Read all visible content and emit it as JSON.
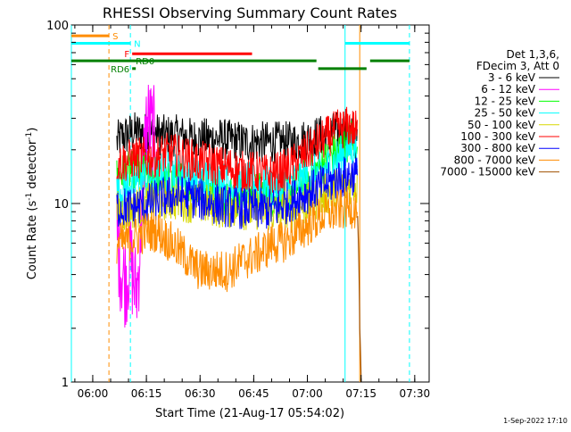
{
  "chart_data": {
    "type": "line",
    "title": "RHESSI Observing Summary Count Rates",
    "xlabel": "Start Time (21-Aug-17 05:54:02)",
    "ylabel_main": "Count Rate (s",
    "ylabel_sup1": "-1",
    "ylabel_mid": " detector",
    "ylabel_sup2": "-1",
    "ylabel_end": ")",
    "x_unit": "minutes since 05:54:02",
    "x_range": [
      0,
      100
    ],
    "y_scale": "log",
    "y_range": [
      1,
      100
    ],
    "x_ticks": [
      {
        "v": 5.97,
        "label": "06:00"
      },
      {
        "v": 20.97,
        "label": "06:15"
      },
      {
        "v": 35.97,
        "label": "06:30"
      },
      {
        "v": 50.97,
        "label": "06:45"
      },
      {
        "v": 65.97,
        "label": "07:00"
      },
      {
        "v": 80.97,
        "label": "07:15"
      },
      {
        "v": 95.97,
        "label": "07:30"
      }
    ],
    "y_ticks": [
      {
        "v": 1,
        "label": "1"
      },
      {
        "v": 10,
        "label": "10"
      },
      {
        "v": 100,
        "label": "100"
      }
    ],
    "legend_title_1": "Det 1,3,6,",
    "legend_title_2": "FDecim 3, Att 0",
    "legend_placement": "right",
    "series": [
      {
        "name": "3 - 6 keV",
        "color": "#000000",
        "x": [
          12.7,
          14,
          16,
          18,
          20,
          22,
          24,
          26,
          28,
          30,
          32,
          34,
          36,
          38,
          40,
          42,
          44,
          46,
          48,
          50,
          52,
          54,
          56,
          58,
          60,
          62,
          64,
          66,
          68,
          70,
          72,
          74,
          76,
          78,
          79,
          80
        ],
        "y": [
          22,
          23.5,
          24.5,
          25,
          25,
          24.5,
          24.5,
          24,
          24,
          24,
          23.5,
          23,
          23,
          23,
          23,
          23,
          22.5,
          22.5,
          22,
          22,
          22,
          22,
          22,
          22,
          22,
          22,
          22.5,
          23,
          23.5,
          24,
          24.5,
          25,
          25,
          24,
          23,
          22
        ]
      },
      {
        "name": "6 - 12 keV",
        "color": "#ff00ff",
        "x": [
          12.7,
          13.2,
          13.8,
          14.5,
          15,
          15.5,
          16,
          16.5,
          17,
          17.5,
          18,
          18.5,
          19,
          19.5,
          20,
          20.5,
          21,
          21.6,
          22,
          22.6,
          23.2,
          24
        ],
        "y": [
          7,
          5.5,
          4.5,
          4,
          3.8,
          4,
          4.5,
          5,
          4.2,
          3.5,
          3.3,
          3.5,
          5,
          8,
          14,
          20,
          28,
          28,
          27,
          25,
          24,
          24.5
        ]
      },
      {
        "name": "12 - 25 keV",
        "color": "#00ff00",
        "x": [
          12.7,
          14,
          16,
          18,
          20,
          22,
          24,
          26,
          28,
          30,
          32,
          34,
          36,
          38,
          40,
          42,
          44,
          46,
          48,
          50,
          52,
          54,
          56,
          58,
          60,
          62,
          64,
          66,
          68,
          70,
          72,
          74,
          76,
          78,
          79,
          80
        ],
        "y": [
          14,
          14.5,
          15,
          15,
          15,
          14.5,
          14,
          13,
          13,
          13.5,
          13,
          12.5,
          12,
          12,
          11.5,
          11,
          11.5,
          11,
          11.5,
          11.5,
          11.5,
          11.5,
          11,
          10.5,
          11.5,
          12,
          13,
          14,
          15,
          16.5,
          18,
          19.5,
          21,
          23,
          24,
          24
        ]
      },
      {
        "name": "25 - 50 keV",
        "color": "#00ffff",
        "x": [
          12.7,
          14,
          16,
          18,
          20,
          22,
          24,
          26,
          28,
          30,
          32,
          34,
          36,
          38,
          40,
          42,
          44,
          46,
          48,
          50,
          52,
          54,
          56,
          58,
          60,
          62,
          64,
          66,
          68,
          70,
          72,
          74,
          76,
          78,
          79,
          80
        ],
        "y": [
          11.5,
          12,
          12.5,
          13,
          13.5,
          14,
          14.5,
          15,
          15,
          15,
          14.5,
          14,
          13.5,
          13.5,
          13,
          13,
          13,
          13,
          13,
          13,
          13,
          12.5,
          12.5,
          12,
          12.5,
          13,
          13.5,
          14,
          14.5,
          15,
          16,
          17.5,
          19,
          20.5,
          21,
          21
        ]
      },
      {
        "name": "50 - 100 keV",
        "color": "#d8d800",
        "x": [
          12.7,
          14,
          16,
          18,
          20,
          22,
          24,
          26,
          28,
          30,
          32,
          34,
          36,
          38,
          40,
          42,
          44,
          46,
          48,
          50,
          52,
          54,
          56,
          58,
          60,
          62,
          64,
          66,
          68,
          70,
          72,
          74,
          76,
          78,
          79,
          80
        ],
        "y": [
          9,
          9,
          9.2,
          9.5,
          9.8,
          10,
          10.2,
          10.5,
          10.5,
          10.5,
          10.3,
          10,
          10,
          9.8,
          9.7,
          9.5,
          9.5,
          9.5,
          9.3,
          9.2,
          9.3,
          9.2,
          9,
          9,
          9.2,
          9.3,
          9.5,
          10,
          10.5,
          11,
          11.5,
          12,
          12.5,
          13,
          13,
          12.5
        ]
      },
      {
        "name": "100 - 300 keV",
        "color": "#ff0000",
        "x": [
          12.7,
          14,
          16,
          18,
          20,
          22,
          24,
          26,
          28,
          30,
          32,
          34,
          36,
          38,
          40,
          42,
          44,
          46,
          48,
          50,
          52,
          54,
          56,
          58,
          60,
          62,
          64,
          66,
          68,
          70,
          72,
          74,
          76,
          78,
          79,
          80
        ],
        "y": [
          17,
          17,
          17.5,
          18,
          18,
          18,
          18.5,
          19,
          19,
          18.5,
          18,
          17.5,
          17,
          17,
          16.5,
          16,
          16,
          15.5,
          15,
          15,
          15,
          14.5,
          14.5,
          15,
          15.5,
          16.5,
          18,
          19.5,
          21,
          22.5,
          24,
          25.5,
          26.5,
          27,
          26,
          25
        ]
      },
      {
        "name": "300 - 800 keV",
        "color": "#0000ff",
        "x": [
          12.7,
          14,
          16,
          18,
          20,
          22,
          24,
          26,
          28,
          30,
          32,
          34,
          36,
          38,
          40,
          42,
          44,
          46,
          48,
          50,
          52,
          54,
          56,
          58,
          60,
          62,
          64,
          66,
          68,
          70,
          72,
          74,
          76,
          78,
          79,
          80
        ],
        "y": [
          9.5,
          9.5,
          9.5,
          9.6,
          9.8,
          10,
          10.5,
          10.8,
          11,
          11,
          11,
          10.8,
          10.5,
          10.2,
          10,
          9.8,
          9.6,
          9.5,
          9.4,
          9.3,
          9.3,
          9.3,
          9.3,
          9.5,
          10,
          10.5,
          11,
          11.5,
          12,
          12.5,
          13,
          13.5,
          14,
          14.5,
          14.5,
          14
        ]
      },
      {
        "name": "800 - 7000 keV",
        "color": "#ff8c00",
        "x": [
          12.7,
          14,
          16,
          18,
          20,
          22,
          24,
          26,
          28,
          30,
          32,
          34,
          36,
          38,
          40,
          42,
          44,
          46,
          48,
          50,
          52,
          54,
          56,
          58,
          60,
          62,
          64,
          66,
          68,
          70,
          72,
          74,
          76,
          78,
          79,
          80
        ],
        "y": [
          6,
          6,
          6.2,
          6.5,
          6.8,
          7,
          7,
          6.5,
          6,
          5.5,
          5,
          4.5,
          4.2,
          4.2,
          4.2,
          4.2,
          4.2,
          4.5,
          4.8,
          5,
          5.2,
          5.5,
          6,
          6,
          6.2,
          6.5,
          7,
          7.5,
          8,
          8.5,
          8.8,
          9,
          9.3,
          9.5,
          9.5,
          9.3
        ]
      },
      {
        "name": "7000 - 15000 keV",
        "color": "#a05000",
        "x": [
          80,
          80.6,
          81
        ],
        "y": [
          8.5,
          2,
          1
        ]
      }
    ],
    "decimation_bars": [
      {
        "label": "S",
        "color": "#ff8c00",
        "x0": 0,
        "x1": 10.5,
        "level": 87
      },
      {
        "label": "N",
        "color": "#00ffff",
        "x0": 0,
        "x1": 16.5,
        "level": 79
      },
      {
        "label": "F",
        "color": "#ff0000",
        "x0": 17,
        "x1": 50.5,
        "level": 69
      },
      {
        "label": "RD0",
        "color": "#008000",
        "x0": 0,
        "x1": 68.5,
        "level": 63
      },
      {
        "label": "",
        "color": "#008000",
        "x0": 69,
        "x1": 82.5,
        "level": 57
      },
      {
        "label": "",
        "color": "#008000",
        "x0": 83.5,
        "x1": 94.5,
        "level": 63
      },
      {
        "label": "",
        "color": "#00ffff",
        "x0": 76.5,
        "x1": 94.5,
        "level": 79
      },
      {
        "label": "RD6",
        "color": "#008000",
        "x0": 17,
        "x1": 18,
        "level": 57
      }
    ],
    "vertical_markers": [
      {
        "x": 0,
        "color": "#00ffff",
        "style": "solid"
      },
      {
        "x": 10.5,
        "color": "#ff8c00",
        "style": "dashed"
      },
      {
        "x": 16.5,
        "color": "#00ffff",
        "style": "dashed"
      },
      {
        "x": 76.5,
        "color": "#00ffff",
        "style": "solid"
      },
      {
        "x": 80.6,
        "color": "#ff8c00",
        "style": "solid"
      },
      {
        "x": 94.5,
        "color": "#00ffff",
        "style": "dashed"
      }
    ],
    "timestamp": "1-Sep-2022 17:10"
  }
}
